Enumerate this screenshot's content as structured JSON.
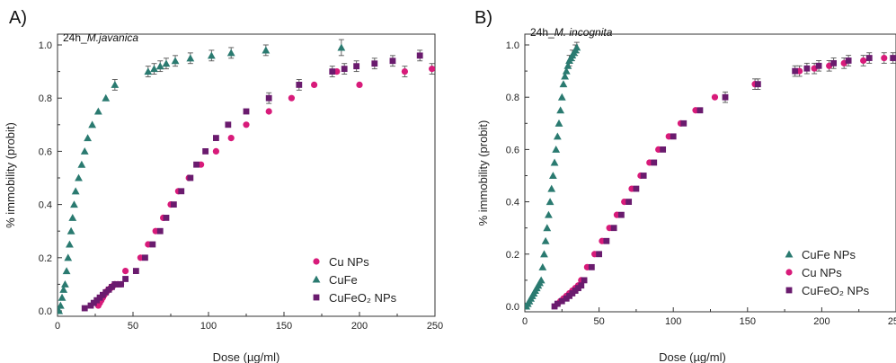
{
  "colors": {
    "cu": "#d81b7a",
    "cufe": "#2a7a70",
    "cufeo": "#6a1b6e",
    "errbar": "#555555"
  },
  "chart_data": [
    {
      "type": "scatter",
      "panel_label": "A)",
      "subtitle_prefix": "24h_",
      "subtitle_italic": "M.javanica",
      "xlabel": "Dose (µg/ml)",
      "ylabel": "% immobility (probit)",
      "xlim": [
        0,
        250
      ],
      "ylim": [
        0,
        1.0
      ],
      "xticks": [
        "0",
        "50",
        "100",
        "150",
        "200",
        "250"
      ],
      "yticks": [
        "0.0",
        "0.2",
        "0.4",
        "0.6",
        "0.8",
        "1.0"
      ],
      "legend_position": "bottom-right",
      "legend_order": [
        "cu",
        "cufe",
        "cufeo"
      ],
      "series": [
        {
          "key": "cu",
          "name": "Cu NPs",
          "marker": "circle",
          "points": [
            [
              27,
              0.02
            ],
            [
              28,
              0.03
            ],
            [
              29,
              0.04
            ],
            [
              30,
              0.05
            ],
            [
              31,
              0.06
            ],
            [
              32,
              0.07
            ],
            [
              33,
              0.075
            ],
            [
              34,
              0.08
            ],
            [
              35,
              0.085
            ],
            [
              36,
              0.09
            ],
            [
              37,
              0.095
            ],
            [
              38,
              0.1
            ],
            [
              40,
              0.1
            ],
            [
              42,
              0.1
            ],
            [
              45,
              0.15
            ],
            [
              55,
              0.2
            ],
            [
              60,
              0.25
            ],
            [
              65,
              0.3
            ],
            [
              70,
              0.35
            ],
            [
              75,
              0.4
            ],
            [
              80,
              0.45
            ],
            [
              87,
              0.5
            ],
            [
              95,
              0.55
            ],
            [
              105,
              0.6
            ],
            [
              115,
              0.65
            ],
            [
              125,
              0.7
            ],
            [
              140,
              0.75
            ],
            [
              155,
              0.8
            ],
            [
              170,
              0.85
            ],
            [
              185,
              0.9
            ],
            [
              200,
              0.85
            ],
            [
              230,
              0.9
            ],
            [
              248,
              0.91
            ]
          ],
          "errors": [
            [
              230,
              0.02
            ],
            [
              248,
              0.02
            ]
          ]
        },
        {
          "key": "cufe",
          "name": "CuFe",
          "marker": "triangle",
          "points": [
            [
              1,
              0.0
            ],
            [
              2,
              0.02
            ],
            [
              3,
              0.05
            ],
            [
              4,
              0.08
            ],
            [
              5,
              0.1
            ],
            [
              6,
              0.15
            ],
            [
              7,
              0.2
            ],
            [
              8,
              0.25
            ],
            [
              9,
              0.3
            ],
            [
              10,
              0.35
            ],
            [
              11,
              0.4
            ],
            [
              12,
              0.45
            ],
            [
              14,
              0.5
            ],
            [
              16,
              0.55
            ],
            [
              18,
              0.6
            ],
            [
              20,
              0.65
            ],
            [
              23,
              0.7
            ],
            [
              27,
              0.75
            ],
            [
              32,
              0.8
            ],
            [
              38,
              0.85
            ],
            [
              60,
              0.9
            ],
            [
              64,
              0.91
            ],
            [
              68,
              0.92
            ],
            [
              72,
              0.93
            ],
            [
              78,
              0.94
            ],
            [
              88,
              0.95
            ],
            [
              102,
              0.96
            ],
            [
              115,
              0.97
            ],
            [
              138,
              0.98
            ],
            [
              188,
              0.99
            ]
          ],
          "errors": [
            [
              38,
              0.02
            ],
            [
              60,
              0.02
            ],
            [
              64,
              0.02
            ],
            [
              68,
              0.02
            ],
            [
              72,
              0.02
            ],
            [
              78,
              0.02
            ],
            [
              88,
              0.02
            ],
            [
              102,
              0.02
            ],
            [
              115,
              0.02
            ],
            [
              138,
              0.02
            ],
            [
              188,
              0.03
            ]
          ]
        },
        {
          "key": "cufeo",
          "name": "CuFeO₂ NPs",
          "marker": "square",
          "points": [
            [
              18,
              0.01
            ],
            [
              22,
              0.02
            ],
            [
              24,
              0.03
            ],
            [
              26,
              0.04
            ],
            [
              28,
              0.05
            ],
            [
              30,
              0.06
            ],
            [
              32,
              0.07
            ],
            [
              34,
              0.08
            ],
            [
              36,
              0.09
            ],
            [
              38,
              0.1
            ],
            [
              40,
              0.1
            ],
            [
              42,
              0.1
            ],
            [
              45,
              0.12
            ],
            [
              52,
              0.15
            ],
            [
              58,
              0.2
            ],
            [
              63,
              0.25
            ],
            [
              68,
              0.3
            ],
            [
              72,
              0.35
            ],
            [
              77,
              0.4
            ],
            [
              82,
              0.45
            ],
            [
              88,
              0.5
            ],
            [
              92,
              0.55
            ],
            [
              98,
              0.6
            ],
            [
              105,
              0.65
            ],
            [
              113,
              0.7
            ],
            [
              125,
              0.75
            ],
            [
              140,
              0.8
            ],
            [
              160,
              0.85
            ],
            [
              182,
              0.9
            ],
            [
              190,
              0.91
            ],
            [
              198,
              0.92
            ],
            [
              210,
              0.93
            ],
            [
              222,
              0.94
            ],
            [
              240,
              0.96
            ]
          ],
          "errors": [
            [
              140,
              0.02
            ],
            [
              160,
              0.02
            ],
            [
              182,
              0.02
            ],
            [
              190,
              0.02
            ],
            [
              198,
              0.02
            ],
            [
              210,
              0.02
            ],
            [
              222,
              0.02
            ],
            [
              240,
              0.02
            ]
          ]
        }
      ]
    },
    {
      "type": "scatter",
      "panel_label": "B)",
      "subtitle_prefix": "24h_",
      "subtitle_italic": "M. incognita",
      "xlabel": "Dose (µg/ml)",
      "ylabel": "% immobility (probit)",
      "xlim": [
        0,
        250
      ],
      "ylim": [
        0,
        1.0
      ],
      "xticks": [
        "0",
        "50",
        "100",
        "150",
        "200",
        "250"
      ],
      "yticks": [
        "0.0",
        "0.2",
        "0.4",
        "0.6",
        "0.8",
        "1.0"
      ],
      "legend_position": "bottom-right",
      "legend_order": [
        "cufe",
        "cu",
        "cufeo"
      ],
      "series": [
        {
          "key": "cufe",
          "name": "CuFe NPs",
          "marker": "triangle",
          "points": [
            [
              0.5,
              0.0
            ],
            [
              1,
              0.0
            ],
            [
              2,
              0.01
            ],
            [
              3,
              0.02
            ],
            [
              4,
              0.03
            ],
            [
              5,
              0.04
            ],
            [
              6,
              0.05
            ],
            [
              7,
              0.06
            ],
            [
              8,
              0.07
            ],
            [
              9,
              0.08
            ],
            [
              10,
              0.09
            ],
            [
              11,
              0.1
            ],
            [
              12,
              0.15
            ],
            [
              13,
              0.2
            ],
            [
              14,
              0.25
            ],
            [
              15,
              0.3
            ],
            [
              16,
              0.35
            ],
            [
              17,
              0.4
            ],
            [
              18,
              0.45
            ],
            [
              19,
              0.5
            ],
            [
              20,
              0.55
            ],
            [
              21,
              0.6
            ],
            [
              22,
              0.65
            ],
            [
              23,
              0.7
            ],
            [
              24,
              0.75
            ],
            [
              25,
              0.8
            ],
            [
              26,
              0.85
            ],
            [
              27,
              0.88
            ],
            [
              28,
              0.9
            ],
            [
              29,
              0.92
            ],
            [
              30,
              0.94
            ],
            [
              31,
              0.95
            ],
            [
              32,
              0.96
            ],
            [
              33,
              0.97
            ],
            [
              34,
              0.98
            ],
            [
              35,
              0.99
            ]
          ],
          "errors": [
            [
              30,
              0.02
            ],
            [
              32,
              0.02
            ],
            [
              34,
              0.02
            ],
            [
              35,
              0.02
            ]
          ]
        },
        {
          "key": "cu",
          "name": "Cu NPs",
          "marker": "circle",
          "points": [
            [
              22,
              0.01
            ],
            [
              24,
              0.02
            ],
            [
              26,
              0.03
            ],
            [
              28,
              0.04
            ],
            [
              30,
              0.05
            ],
            [
              32,
              0.06
            ],
            [
              34,
              0.07
            ],
            [
              36,
              0.08
            ],
            [
              38,
              0.1
            ],
            [
              42,
              0.15
            ],
            [
              47,
              0.2
            ],
            [
              52,
              0.25
            ],
            [
              57,
              0.3
            ],
            [
              62,
              0.35
            ],
            [
              67,
              0.4
            ],
            [
              72,
              0.45
            ],
            [
              78,
              0.5
            ],
            [
              84,
              0.55
            ],
            [
              90,
              0.6
            ],
            [
              97,
              0.65
            ],
            [
              105,
              0.7
            ],
            [
              115,
              0.75
            ],
            [
              128,
              0.8
            ],
            [
              155,
              0.85
            ],
            [
              185,
              0.9
            ],
            [
              195,
              0.91
            ],
            [
              205,
              0.92
            ],
            [
              215,
              0.93
            ],
            [
              228,
              0.94
            ],
            [
              242,
              0.95
            ],
            [
              260,
              0.96
            ]
          ],
          "errors": [
            [
              155,
              0.02
            ],
            [
              185,
              0.02
            ],
            [
              195,
              0.02
            ],
            [
              205,
              0.02
            ],
            [
              215,
              0.02
            ],
            [
              228,
              0.02
            ],
            [
              242,
              0.02
            ]
          ]
        },
        {
          "key": "cufeo",
          "name": "CuFeO₂ NPs",
          "marker": "square",
          "points": [
            [
              20,
              0.0
            ],
            [
              22,
              0.01
            ],
            [
              25,
              0.02
            ],
            [
              28,
              0.03
            ],
            [
              30,
              0.04
            ],
            [
              32,
              0.05
            ],
            [
              34,
              0.06
            ],
            [
              36,
              0.07
            ],
            [
              38,
              0.08
            ],
            [
              40,
              0.1
            ],
            [
              45,
              0.15
            ],
            [
              50,
              0.2
            ],
            [
              55,
              0.25
            ],
            [
              60,
              0.3
            ],
            [
              65,
              0.35
            ],
            [
              70,
              0.4
            ],
            [
              75,
              0.45
            ],
            [
              80,
              0.5
            ],
            [
              87,
              0.55
            ],
            [
              93,
              0.6
            ],
            [
              100,
              0.65
            ],
            [
              107,
              0.7
            ],
            [
              118,
              0.75
            ],
            [
              135,
              0.8
            ],
            [
              157,
              0.85
            ],
            [
              182,
              0.9
            ],
            [
              190,
              0.91
            ],
            [
              198,
              0.92
            ],
            [
              208,
              0.93
            ],
            [
              218,
              0.94
            ],
            [
              232,
              0.95
            ],
            [
              248,
              0.95
            ]
          ],
          "errors": [
            [
              135,
              0.02
            ],
            [
              157,
              0.02
            ],
            [
              182,
              0.02
            ],
            [
              190,
              0.02
            ],
            [
              198,
              0.02
            ],
            [
              208,
              0.02
            ],
            [
              218,
              0.02
            ],
            [
              232,
              0.02
            ],
            [
              248,
              0.02
            ]
          ]
        }
      ]
    }
  ]
}
